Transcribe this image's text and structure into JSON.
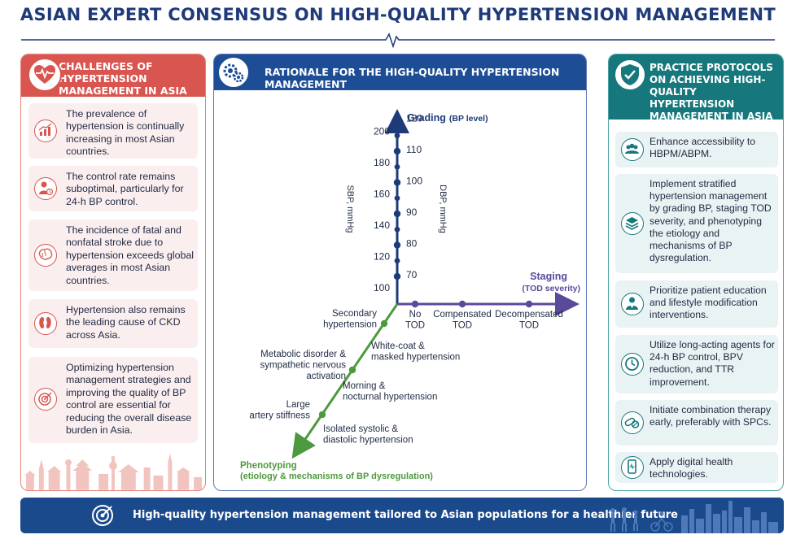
{
  "title": "ASIAN EXPERT CONSENSUS ON HIGH-QUALITY HYPERTENSION MANAGEMENT",
  "colors": {
    "navy": "#1e3a78",
    "red": "#d85550",
    "teal": "#16787c",
    "blue": "#1d4d94",
    "purple": "#5b4a9b",
    "green": "#4d9a3e"
  },
  "left_panel": {
    "title": "CHALLENGES OF HYPERTENSION MANAGEMENT IN ASIA",
    "icon": "heart-pulse-icon",
    "items": [
      {
        "icon": "chart-up-icon",
        "text": "The prevalence of hypertension is continually increasing in most Asian countries."
      },
      {
        "icon": "person-clock-icon",
        "text": "The control rate remains suboptimal, particularly for 24-h BP control."
      },
      {
        "icon": "brain-icon",
        "text": "The incidence of fatal and nonfatal stroke due to hypertension exceeds global averages in most Asian countries."
      },
      {
        "icon": "kidney-icon",
        "text": "Hypertension also remains the leading cause of CKD across Asia."
      },
      {
        "icon": "target-icon",
        "text": "Optimizing hypertension management strategies and improving the quality of BP control are essential for reducing the overall disease burden in Asia."
      }
    ]
  },
  "mid_panel": {
    "title": "RATIONALE FOR THE HIGH-QUALITY HYPERTENSION MANAGEMENT",
    "icon": "gears-icon",
    "grading": {
      "label": "Grading",
      "sub": "(BP level)"
    },
    "sbp_label": "SBP, mmHg",
    "dbp_label": "DBP, mmHg",
    "sbp_ticks": [
      "200",
      "180",
      "160",
      "140",
      "120",
      "100"
    ],
    "dbp_ticks": [
      "120",
      "110",
      "100",
      "90",
      "80",
      "70"
    ],
    "staging": {
      "label": "Staging",
      "sub": "(TOD severity)"
    },
    "staging_points": [
      "No\nTOD",
      "Compensated\nTOD",
      "Decompensated\nTOD"
    ],
    "phenotyping": {
      "label": "Phenotyping",
      "sub": "(etiology & mechanisms of BP dysregulation)"
    },
    "pheno_left": [
      "Secondary\nhypertension",
      "Metabolic disorder &\nsympathetic nervous\nactivation",
      "Large\nartery stiffness"
    ],
    "pheno_right": [
      "White-coat &\nmasked hypertension",
      "Morning &\nnocturnal hypertension",
      "Isolated systolic &\ndiastolic hypertension"
    ]
  },
  "right_panel": {
    "title": "PRACTICE PROTOCOLS ON ACHIEVING HIGH-QUALITY HYPERTENSION MANAGEMENT IN ASIA",
    "icon": "shield-check-icon",
    "items": [
      {
        "icon": "people-icon",
        "text": "Enhance accessibility to HBPM/ABPM."
      },
      {
        "icon": "layers-icon",
        "text": "Implement stratified hypertension management by grading BP, staging TOD severity, and phenotyping the etiology and mechanisms of BP dysregulation."
      },
      {
        "icon": "doctor-icon",
        "text": "Prioritize patient education and lifestyle modification interventions."
      },
      {
        "icon": "clock-icon",
        "text": "Utilize long-acting agents for 24-h BP control, BPV reduction, and TTR improvement."
      },
      {
        "icon": "pills-icon",
        "text": "Initiate combination therapy early, preferably with SPCs."
      },
      {
        "icon": "phone-icon",
        "text": "Apply digital health technologies."
      }
    ]
  },
  "footer": {
    "icon": "target-icon",
    "text": "High-quality hypertension management tailored to Asian populations for a healthier future"
  }
}
